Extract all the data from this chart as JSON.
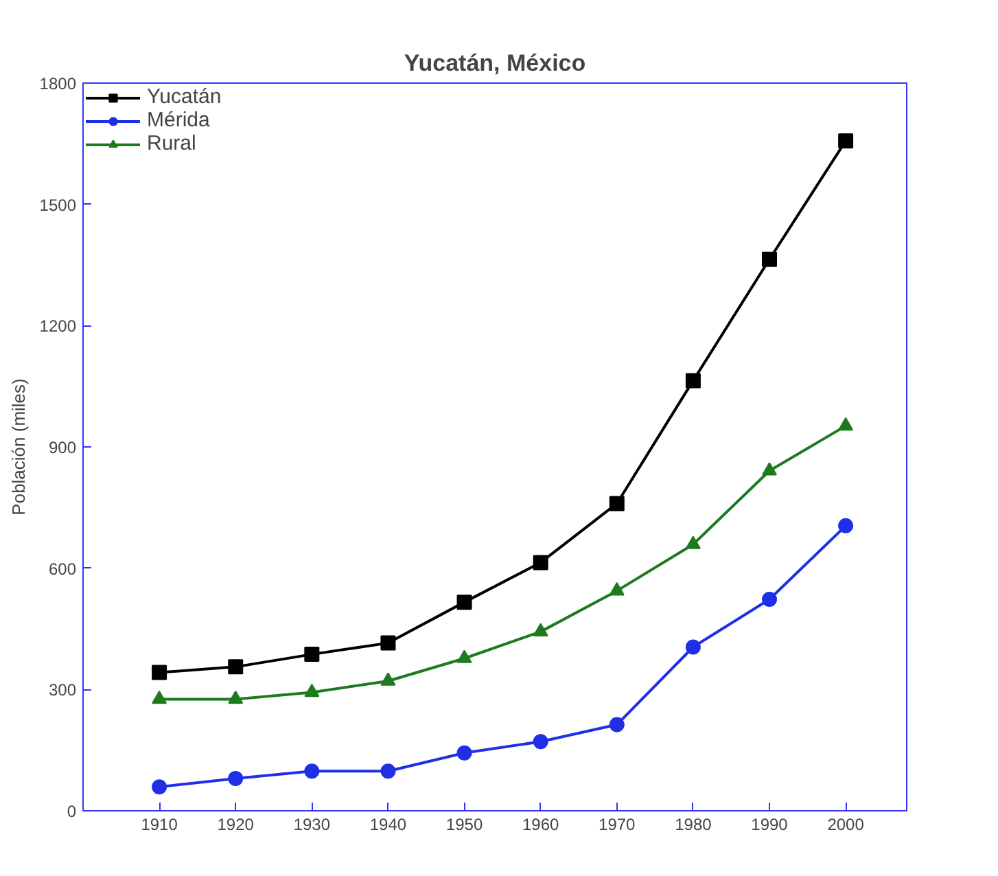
{
  "chart_data": {
    "type": "line",
    "title": "Yucatán, México",
    "ylabel": "Población (miles)",
    "x": [
      1910,
      1920,
      1930,
      1940,
      1950,
      1960,
      1970,
      1980,
      1990,
      2000
    ],
    "series": [
      {
        "name": "Yucatán",
        "color": "#000000",
        "marker": "square",
        "values": [
          342,
          356,
          387,
          415,
          516,
          614,
          760,
          1064,
          1364,
          1657
        ]
      },
      {
        "name": "Mérida",
        "color": "#1f2fe6",
        "marker": "circle",
        "values": [
          59,
          80,
          98,
          98,
          143,
          171,
          213,
          405,
          523,
          705
        ]
      },
      {
        "name": "Rural",
        "color": "#1e7a1e",
        "marker": "triangle",
        "values": [
          276,
          276,
          293,
          321,
          377,
          443,
          544,
          659,
          841,
          952
        ]
      }
    ],
    "xlim": [
      1900,
      2008
    ],
    "ylim": [
      0,
      1800
    ],
    "xticks": [
      1910,
      1920,
      1930,
      1940,
      1950,
      1960,
      1970,
      1980,
      1990,
      2000
    ],
    "yticks": [
      0,
      300,
      600,
      900,
      1200,
      1500,
      1800
    ],
    "grid": false,
    "legend": "top left",
    "line_style": "solid"
  }
}
